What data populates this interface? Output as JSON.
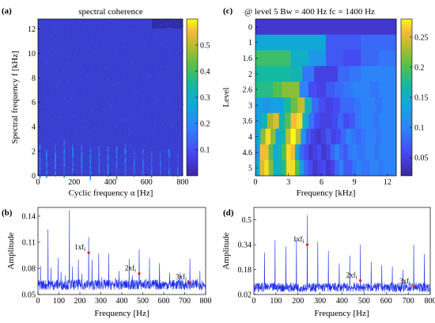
{
  "panels": {
    "a": {
      "tag": "(a)",
      "title": "spectral coherence",
      "xlabel": "Cyclic frequency α [Hz]",
      "ylabel": "Spectral frequency f [kHz]",
      "colorbar_ticks": [
        "0.1",
        "0.2",
        "0.3",
        "0.4",
        "0.5"
      ]
    },
    "b": {
      "tag": "(b)",
      "xlabel": "Frequency [Hz]",
      "ylabel": "Amplitude",
      "annotations": [
        {
          "label": "1xf",
          "sub": "i"
        },
        {
          "label": "2xf",
          "sub": "i"
        },
        {
          "label": "3xf",
          "sub": "i"
        }
      ]
    },
    "c": {
      "tag": "(c)",
      "title": "@ level 5  Bw = 400 Hz   fc = 1400 Hz",
      "xlabel": "Frequency [kHz]",
      "ylabel": "Level",
      "colorbar_ticks": [
        "0.05",
        "0.1",
        "0.15",
        "0.2",
        "0.25"
      ]
    },
    "d": {
      "tag": "(d)",
      "xlabel": "Frequency [Hz]",
      "ylabel": "Amplitude",
      "annotations": [
        {
          "label": "1xf",
          "sub": "i"
        },
        {
          "label": "2xf",
          "sub": "i"
        },
        {
          "label": "3xf",
          "sub": "i"
        }
      ]
    }
  },
  "colors": {
    "line": "#1f2fe8",
    "marker": "#e0201c",
    "map_low": "#3e26a8",
    "map_high": "#f9fb15"
  },
  "chart_data": [
    {
      "panel": "a",
      "type": "heatmap",
      "title": "spectral coherence",
      "xlabel": "Cyclic frequency α [Hz]",
      "ylabel": "Spectral frequency f [kHz]",
      "xlim": [
        0,
        800
      ],
      "ylim": [
        0,
        12.8
      ],
      "x_ticks": [
        0,
        200,
        400,
        600,
        800
      ],
      "y_ticks": [
        0,
        2,
        4,
        6,
        8,
        10,
        12
      ],
      "clim": [
        0,
        0.6
      ],
      "colorbar_ticks": [
        0.1,
        0.2,
        0.3,
        0.4,
        0.5
      ],
      "background_level": 0.05,
      "vertical_streaks": [
        {
          "alpha": 11,
          "f_max": 2.6,
          "value": 0.28
        },
        {
          "alpha": 48,
          "f_max": 2.2,
          "value": 0.32
        },
        {
          "alpha": 96,
          "f_max": 2.6,
          "value": 0.36
        },
        {
          "alpha": 145,
          "f_max": 3.0,
          "value": 0.3
        },
        {
          "alpha": 193,
          "f_max": 2.6,
          "value": 0.32
        },
        {
          "alpha": 242,
          "f_max": 2.6,
          "value": 0.34
        },
        {
          "alpha": 290,
          "f_max": 2.4,
          "value": 0.3
        },
        {
          "alpha": 338,
          "f_max": 2.4,
          "value": 0.28
        },
        {
          "alpha": 387,
          "f_max": 2.4,
          "value": 0.3
        },
        {
          "alpha": 435,
          "f_max": 2.4,
          "value": 0.26
        },
        {
          "alpha": 483,
          "f_max": 2.6,
          "value": 0.34
        },
        {
          "alpha": 532,
          "f_max": 2.2,
          "value": 0.24
        },
        {
          "alpha": 580,
          "f_max": 2.2,
          "value": 0.26
        },
        {
          "alpha": 628,
          "f_max": 2.0,
          "value": 0.22
        },
        {
          "alpha": 677,
          "f_max": 2.0,
          "value": 0.22
        },
        {
          "alpha": 725,
          "f_max": 2.2,
          "value": 0.3
        },
        {
          "alpha": 773,
          "f_max": 1.8,
          "value": 0.2
        }
      ]
    },
    {
      "panel": "b",
      "type": "line",
      "xlabel": "Frequency [Hz]",
      "ylabel": "Amplitude",
      "xlim": [
        0,
        800
      ],
      "ylim": [
        0.05,
        0.15
      ],
      "x_ticks": [
        0,
        100,
        200,
        300,
        400,
        500,
        600,
        700,
        800
      ],
      "y_ticks": [
        0.05,
        0.08,
        0.11,
        0.14
      ],
      "baseline": 0.06,
      "peaks": [
        {
          "x": 12,
          "y": 0.083
        },
        {
          "x": 48,
          "y": 0.125
        },
        {
          "x": 62,
          "y": 0.081
        },
        {
          "x": 96,
          "y": 0.092
        },
        {
          "x": 110,
          "y": 0.076
        },
        {
          "x": 130,
          "y": 0.072
        },
        {
          "x": 150,
          "y": 0.147
        },
        {
          "x": 165,
          "y": 0.082
        },
        {
          "x": 193,
          "y": 0.09
        },
        {
          "x": 210,
          "y": 0.074
        },
        {
          "x": 242,
          "y": 0.116
        },
        {
          "x": 258,
          "y": 0.09
        },
        {
          "x": 290,
          "y": 0.097
        },
        {
          "x": 305,
          "y": 0.07
        },
        {
          "x": 338,
          "y": 0.097
        },
        {
          "x": 370,
          "y": 0.069
        },
        {
          "x": 387,
          "y": 0.077
        },
        {
          "x": 435,
          "y": 0.091
        },
        {
          "x": 450,
          "y": 0.072
        },
        {
          "x": 483,
          "y": 0.102
        },
        {
          "x": 515,
          "y": 0.068
        },
        {
          "x": 532,
          "y": 0.092
        },
        {
          "x": 580,
          "y": 0.086
        },
        {
          "x": 628,
          "y": 0.075
        },
        {
          "x": 677,
          "y": 0.075
        },
        {
          "x": 725,
          "y": 0.091
        },
        {
          "x": 760,
          "y": 0.068
        },
        {
          "x": 773,
          "y": 0.077
        }
      ],
      "markers": [
        {
          "x": 242,
          "y": 0.098
        },
        {
          "x": 483,
          "y": 0.074
        },
        {
          "x": 725,
          "y": 0.064
        }
      ]
    },
    {
      "panel": "c",
      "type": "heatmap",
      "title": "@ level 5  Bw = 400 Hz   fc = 1400 Hz",
      "xlabel": "Frequency [kHz]",
      "ylabel": "Level",
      "xlim": [
        0,
        12.8
      ],
      "x_ticks": [
        0,
        3,
        6,
        9,
        12
      ],
      "levels": [
        "0",
        "1",
        "1.6",
        "2",
        "2.6",
        "3",
        "3.6",
        "4",
        "4.6",
        "5"
      ],
      "clim": [
        0.02,
        0.28
      ],
      "colorbar_ticks": [
        0.05,
        0.1,
        0.15,
        0.2,
        0.25
      ],
      "rows": [
        [
          0.04
        ],
        [
          0.14,
          0.14,
          0.07,
          0.08
        ],
        [
          0.19,
          0.19,
          0.15,
          0.12,
          0.07,
          0.06,
          0.08,
          0.09
        ],
        [
          0.17,
          0.17,
          0.17,
          0.16,
          0.09,
          0.05,
          0.05,
          0.08,
          0.09,
          0.1,
          0.1,
          0.1
        ],
        [
          0.18,
          0.18,
          0.2,
          0.22,
          0.22,
          0.1,
          0.06,
          0.05,
          0.07,
          0.08,
          0.09,
          0.1,
          0.1,
          0.09,
          0.1,
          0.1
        ],
        [
          0.13,
          0.12,
          0.13,
          0.13,
          0.17,
          0.21,
          0.24,
          0.16,
          0.08,
          0.06,
          0.05,
          0.06,
          0.08,
          0.08,
          0.09,
          0.1,
          0.1,
          0.09,
          0.1,
          0.1
        ],
        [
          0.13,
          0.16,
          0.23,
          0.25,
          0.16,
          0.2,
          0.26,
          0.27,
          0.15,
          0.09,
          0.06,
          0.05,
          0.05,
          0.06,
          0.08,
          0.06,
          0.07,
          0.09,
          0.1,
          0.1,
          0.09,
          0.1,
          0.1,
          0.1
        ],
        [
          0.14,
          0.22,
          0.27,
          0.22,
          0.14,
          0.17,
          0.24,
          0.28,
          0.24,
          0.12,
          0.07,
          0.05,
          0.04,
          0.05,
          0.07,
          0.05,
          0.06,
          0.08,
          0.1,
          0.09,
          0.08,
          0.09,
          0.1,
          0.1,
          0.09,
          0.1,
          0.1,
          0.1
        ],
        [
          0.12,
          0.26,
          0.26,
          0.2,
          0.14,
          0.16,
          0.2,
          0.27,
          0.26,
          0.14,
          0.08,
          0.06,
          0.04,
          0.05,
          0.06,
          0.04,
          0.05,
          0.08,
          0.1,
          0.08,
          0.07,
          0.09,
          0.1,
          0.09,
          0.09,
          0.1,
          0.1,
          0.09,
          0.1,
          0.1,
          0.1,
          0.1
        ],
        [
          0.14,
          0.25,
          0.27,
          0.22,
          0.15,
          0.16,
          0.18,
          0.27,
          0.27,
          0.2,
          0.13,
          0.08,
          0.06,
          0.04,
          0.05,
          0.06,
          0.04,
          0.05,
          0.08,
          0.1,
          0.07,
          0.07,
          0.09,
          0.1,
          0.09,
          0.09,
          0.1,
          0.1,
          0.09,
          0.1,
          0.1,
          0.1
        ]
      ]
    },
    {
      "panel": "d",
      "type": "line",
      "xlabel": "Frequency [Hz]",
      "ylabel": "Amplitude",
      "xlim": [
        0,
        800
      ],
      "ylim": [
        0.02,
        0.58
      ],
      "x_ticks": [
        0,
        100,
        200,
        300,
        400,
        500,
        600,
        700,
        800
      ],
      "y_ticks": [
        0.02,
        0.18,
        0.34,
        0.5
      ],
      "baseline": 0.06,
      "peaks": [
        {
          "x": 48,
          "y": 0.29
        },
        {
          "x": 96,
          "y": 0.37
        },
        {
          "x": 145,
          "y": 0.33
        },
        {
          "x": 193,
          "y": 0.38
        },
        {
          "x": 242,
          "y": 0.53
        },
        {
          "x": 290,
          "y": 0.36
        },
        {
          "x": 338,
          "y": 0.3
        },
        {
          "x": 387,
          "y": 0.22
        },
        {
          "x": 435,
          "y": 0.27
        },
        {
          "x": 483,
          "y": 0.34
        },
        {
          "x": 532,
          "y": 0.23
        },
        {
          "x": 580,
          "y": 0.21
        },
        {
          "x": 628,
          "y": 0.2
        },
        {
          "x": 677,
          "y": 0.18
        },
        {
          "x": 725,
          "y": 0.34
        },
        {
          "x": 773,
          "y": 0.28
        }
      ],
      "markers": [
        {
          "x": 242,
          "y": 0.34
        },
        {
          "x": 483,
          "y": 0.11
        },
        {
          "x": 725,
          "y": 0.07
        }
      ]
    }
  ]
}
